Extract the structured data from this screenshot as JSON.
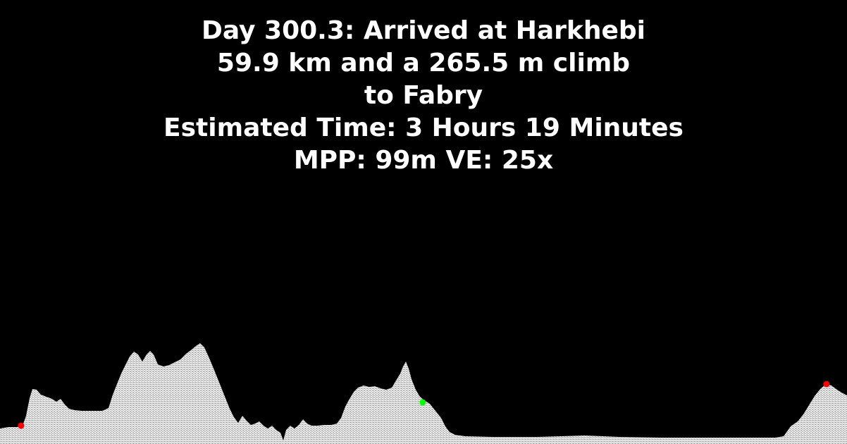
{
  "header": {
    "line1": "Day 300.3: Arrived at Harkhebi",
    "line2": "59.9 km and a 265.5 m climb",
    "line3": "to Fabry",
    "line4": "Estimated Time: 3 Hours 19 Minutes",
    "line5": "MPP: 99m VE: 25x"
  },
  "colors": {
    "background": "#000000",
    "text": "#ffffff",
    "terrain": "#e6e6e6",
    "start_marker": "#ff0000",
    "current_marker": "#00ff00",
    "end_marker": "#ff0000"
  }
}
